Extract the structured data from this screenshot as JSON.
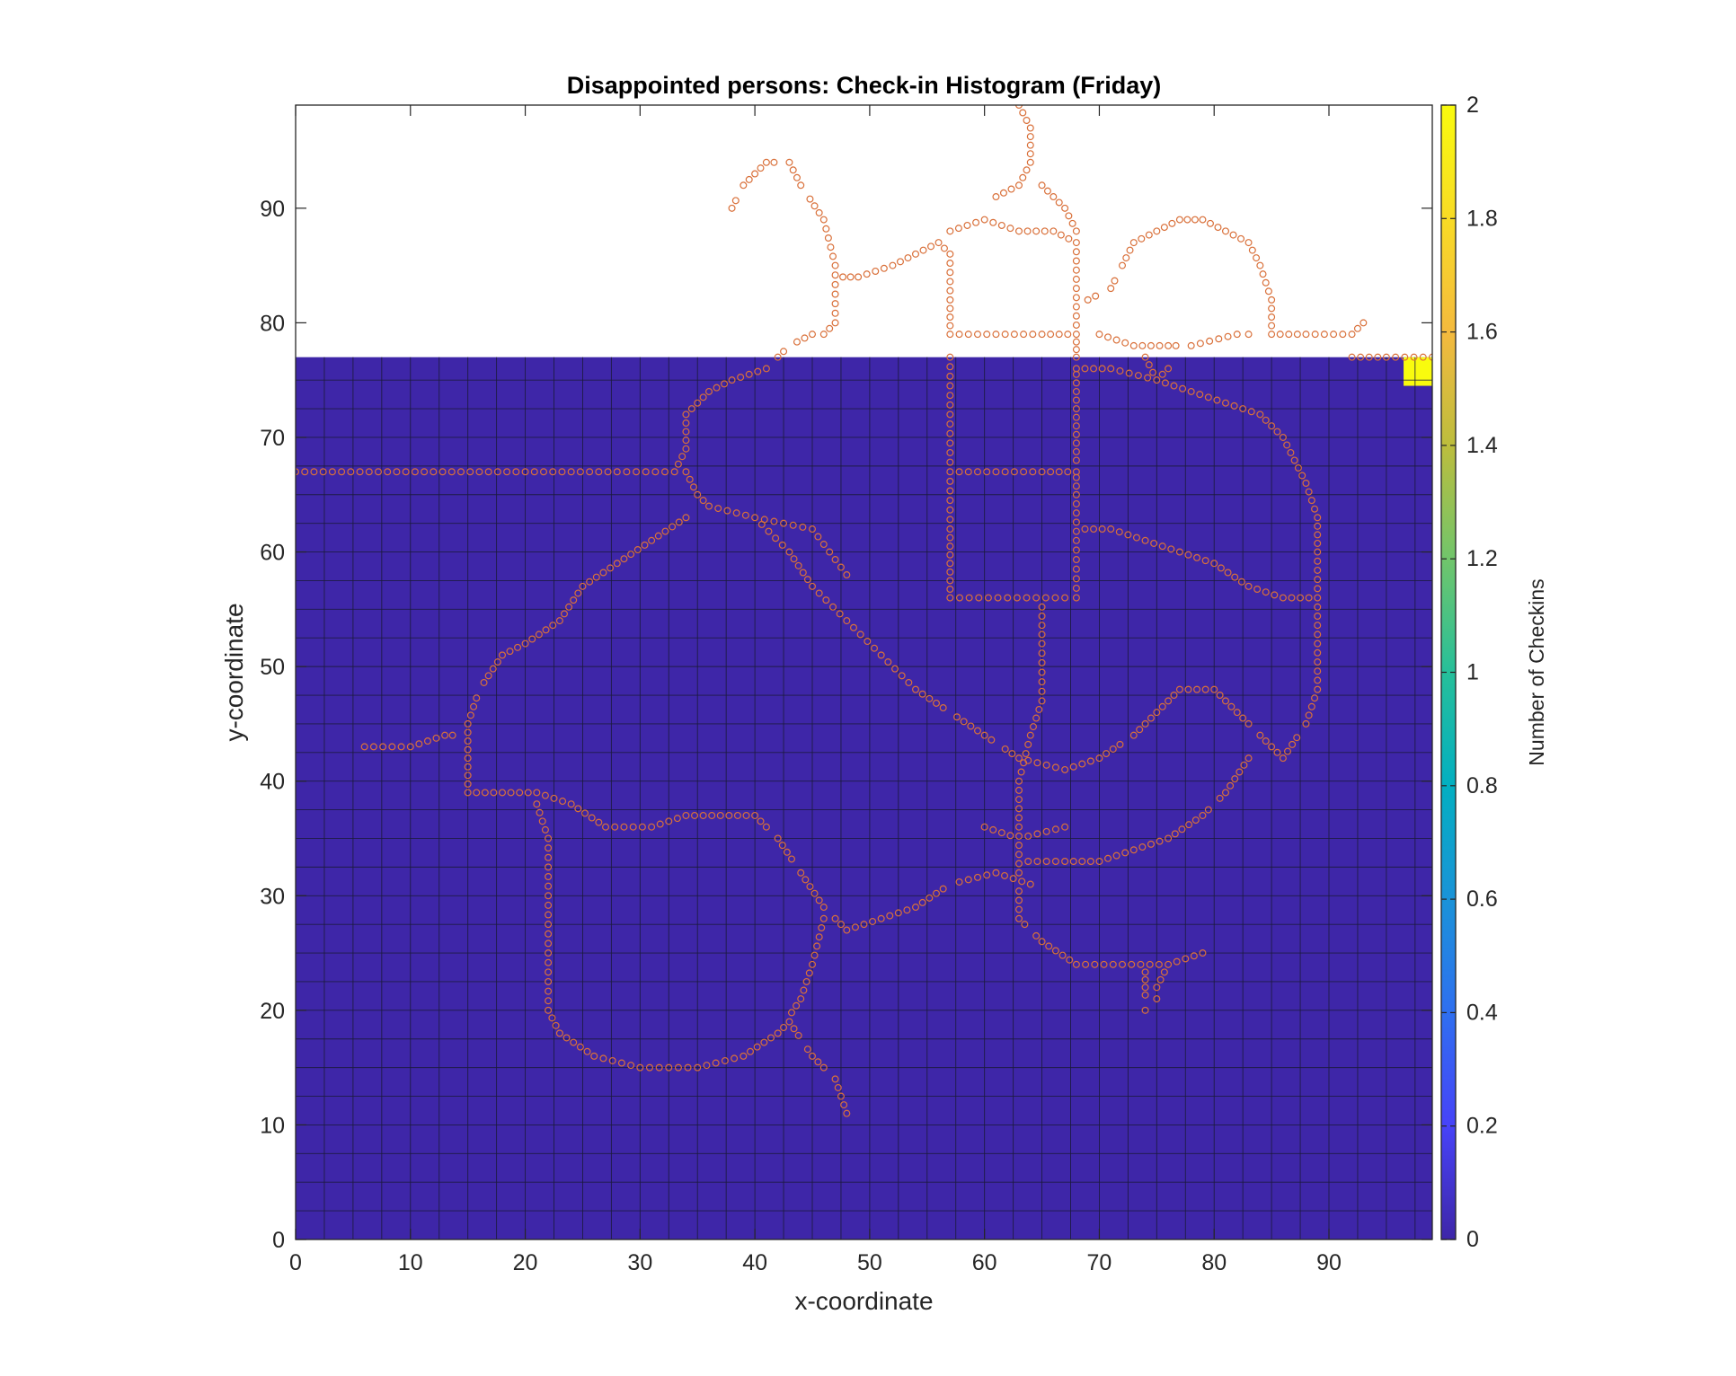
{
  "chart_data": {
    "type": "heatmap",
    "title": "Disappointed persons: Check-in Histogram (Friday)",
    "xlabel": "x-coordinate",
    "ylabel": "y-coordinate",
    "xlim": [
      0,
      99
    ],
    "ylim": [
      0,
      99
    ],
    "x_ticks": [
      "0",
      "10",
      "20",
      "30",
      "40",
      "50",
      "60",
      "70",
      "80",
      "90"
    ],
    "y_ticks": [
      "0",
      "10",
      "20",
      "30",
      "40",
      "50",
      "60",
      "70",
      "80",
      "90"
    ],
    "grid_cell_size": 2.5,
    "heatmap_extent": {
      "x": [
        0,
        99
      ],
      "y": [
        0,
        77
      ]
    },
    "background_value": 0,
    "nonzero_cells": [
      {
        "x": [
          96.5,
          99
        ],
        "y": [
          74.5,
          77
        ],
        "value": 2
      }
    ],
    "colorbar": {
      "label": "Number of Checkins",
      "range": [
        0,
        2
      ],
      "ticks": [
        "0",
        "0.2",
        "0.4",
        "0.6",
        "0.8",
        "1",
        "1.2",
        "1.4",
        "1.6",
        "1.8",
        "2"
      ],
      "colormap": [
        "#3e26a8",
        "#4743f8",
        "#2f6ff0",
        "#1a93d8",
        "#03afc1",
        "#26bf9a",
        "#71c56b",
        "#bcbd3d",
        "#f4ba3e",
        "#f8db25",
        "#f9fb0e"
      ]
    },
    "overlay": {
      "type": "scatter",
      "marker": "circle",
      "color": "#d9703a",
      "paths": [
        [
          [
            0,
            67
          ],
          [
            16,
            67
          ],
          [
            28,
            67
          ],
          [
            33,
            67
          ],
          [
            34,
            69
          ],
          [
            34,
            72
          ],
          [
            36,
            74
          ],
          [
            38,
            75
          ],
          [
            41,
            76
          ],
          [
            43,
            78
          ],
          [
            45,
            79
          ]
        ],
        [
          [
            34,
            67
          ],
          [
            35,
            65
          ],
          [
            36,
            64
          ],
          [
            40,
            63
          ],
          [
            45,
            62
          ],
          [
            48,
            58
          ]
        ],
        [
          [
            34,
            63
          ],
          [
            31,
            61
          ],
          [
            28,
            59
          ],
          [
            25,
            57
          ],
          [
            23,
            54
          ],
          [
            20,
            52
          ],
          [
            18,
            51
          ],
          [
            16,
            48
          ],
          [
            15,
            45
          ],
          [
            15,
            42
          ],
          [
            15,
            39
          ],
          [
            18,
            39
          ],
          [
            21,
            39
          ],
          [
            24,
            38
          ],
          [
            27,
            36
          ],
          [
            31,
            36
          ],
          [
            34,
            37
          ],
          [
            37,
            37
          ],
          [
            40,
            37
          ],
          [
            42,
            35
          ],
          [
            44,
            32
          ],
          [
            46,
            29
          ],
          [
            48,
            27
          ],
          [
            51,
            28
          ],
          [
            54,
            29
          ],
          [
            57,
            31
          ],
          [
            61,
            32
          ],
          [
            64,
            31
          ]
        ],
        [
          [
            6,
            43
          ],
          [
            10,
            43
          ],
          [
            13,
            44
          ],
          [
            15,
            44
          ]
        ],
        [
          [
            21,
            38
          ],
          [
            22,
            35
          ],
          [
            22,
            30
          ],
          [
            22,
            25
          ],
          [
            22,
            20
          ],
          [
            23,
            18
          ],
          [
            26,
            16
          ],
          [
            30,
            15
          ],
          [
            35,
            15
          ],
          [
            39,
            16
          ],
          [
            42,
            18
          ],
          [
            43,
            19
          ],
          [
            45,
            16
          ],
          [
            47,
            14
          ],
          [
            48,
            11
          ]
        ],
        [
          [
            42,
            18
          ],
          [
            44,
            21
          ],
          [
            45,
            24
          ],
          [
            46,
            28
          ]
        ],
        [
          [
            40,
            63
          ],
          [
            43,
            60
          ],
          [
            45,
            57
          ],
          [
            48,
            54
          ],
          [
            51,
            51
          ],
          [
            54,
            48
          ],
          [
            57,
            46
          ],
          [
            60,
            44
          ],
          [
            63,
            42
          ],
          [
            67,
            41
          ],
          [
            70,
            42
          ],
          [
            73,
            44
          ],
          [
            75,
            46
          ],
          [
            77,
            48
          ],
          [
            80,
            48
          ],
          [
            82,
            46
          ],
          [
            84,
            44
          ],
          [
            86,
            42
          ],
          [
            88,
            45
          ],
          [
            89,
            48
          ],
          [
            89,
            52
          ],
          [
            89,
            56
          ],
          [
            89,
            60
          ],
          [
            89,
            63
          ],
          [
            88,
            66
          ],
          [
            86,
            70
          ],
          [
            84,
            72
          ],
          [
            81,
            73
          ],
          [
            78,
            74
          ],
          [
            75,
            75
          ],
          [
            71,
            76
          ],
          [
            68,
            76
          ]
        ],
        [
          [
            57,
            77
          ],
          [
            57,
            72
          ],
          [
            57,
            67
          ],
          [
            57,
            62
          ],
          [
            57,
            56
          ],
          [
            62,
            56
          ],
          [
            67,
            56
          ]
        ],
        [
          [
            57,
            67
          ],
          [
            61,
            67
          ],
          [
            65,
            67
          ],
          [
            68,
            67
          ]
        ],
        [
          [
            68,
            77
          ],
          [
            68,
            71
          ],
          [
            68,
            65
          ],
          [
            68,
            61
          ],
          [
            68,
            56
          ]
        ],
        [
          [
            65,
            56
          ],
          [
            65,
            52
          ],
          [
            65,
            47
          ],
          [
            64,
            44
          ],
          [
            63,
            40
          ],
          [
            63,
            36
          ],
          [
            63,
            32
          ],
          [
            63,
            28
          ],
          [
            65,
            26
          ],
          [
            68,
            24
          ],
          [
            72,
            24
          ],
          [
            76,
            24
          ],
          [
            79,
            25
          ]
        ],
        [
          [
            60,
            36
          ],
          [
            63,
            35
          ],
          [
            67,
            36
          ]
        ],
        [
          [
            63,
            33
          ],
          [
            67,
            33
          ],
          [
            70,
            33
          ],
          [
            73,
            34
          ],
          [
            76,
            35
          ],
          [
            79,
            37
          ],
          [
            81,
            39
          ],
          [
            83,
            42
          ]
        ],
        [
          [
            68,
            62
          ],
          [
            71,
            62
          ],
          [
            74,
            61
          ],
          [
            77,
            60
          ],
          [
            80,
            59
          ],
          [
            83,
            57
          ],
          [
            86,
            56
          ],
          [
            89,
            56
          ]
        ],
        [
          [
            74,
            24
          ],
          [
            74,
            22
          ],
          [
            74,
            20
          ]
        ],
        [
          [
            76,
            24
          ],
          [
            75,
            22
          ],
          [
            75,
            21
          ]
        ],
        [
          [
            38,
            90
          ],
          [
            39,
            92
          ],
          [
            41,
            94
          ],
          [
            43,
            94
          ],
          [
            44,
            92
          ],
          [
            46,
            89
          ],
          [
            47,
            85
          ],
          [
            47,
            80
          ],
          [
            46,
            79
          ]
        ],
        [
          [
            47,
            84
          ],
          [
            49,
            84
          ],
          [
            52,
            85
          ],
          [
            54,
            86
          ],
          [
            56,
            87
          ],
          [
            57,
            86
          ],
          [
            57,
            82
          ],
          [
            57,
            79
          ],
          [
            61,
            79
          ],
          [
            65,
            79
          ],
          [
            68,
            79
          ]
        ],
        [
          [
            57,
            88
          ],
          [
            60,
            89
          ],
          [
            63,
            88
          ],
          [
            66,
            88
          ],
          [
            68,
            87
          ],
          [
            68,
            83
          ],
          [
            68,
            79
          ],
          [
            68,
            77
          ]
        ],
        [
          [
            61,
            91
          ],
          [
            63,
            92
          ],
          [
            64,
            94
          ],
          [
            64,
            97
          ],
          [
            63,
            99
          ]
        ],
        [
          [
            65,
            92
          ],
          [
            67,
            90
          ],
          [
            68,
            88
          ]
        ],
        [
          [
            69,
            82
          ],
          [
            71,
            83
          ],
          [
            72,
            85
          ],
          [
            73,
            87
          ],
          [
            75,
            88
          ],
          [
            77,
            89
          ],
          [
            79,
            89
          ],
          [
            81,
            88
          ],
          [
            83,
            87
          ],
          [
            84,
            85
          ],
          [
            85,
            82
          ],
          [
            85,
            79
          ],
          [
            88,
            79
          ],
          [
            92,
            79
          ],
          [
            93,
            80
          ]
        ],
        [
          [
            70,
            79
          ],
          [
            73,
            78
          ],
          [
            76,
            78
          ],
          [
            78,
            78
          ],
          [
            82,
            79
          ],
          [
            83,
            79
          ]
        ],
        [
          [
            92,
            77
          ],
          [
            95,
            77
          ],
          [
            99,
            77
          ]
        ],
        [
          [
            74,
            77
          ],
          [
            75,
            75
          ],
          [
            76,
            76
          ]
        ]
      ]
    }
  }
}
